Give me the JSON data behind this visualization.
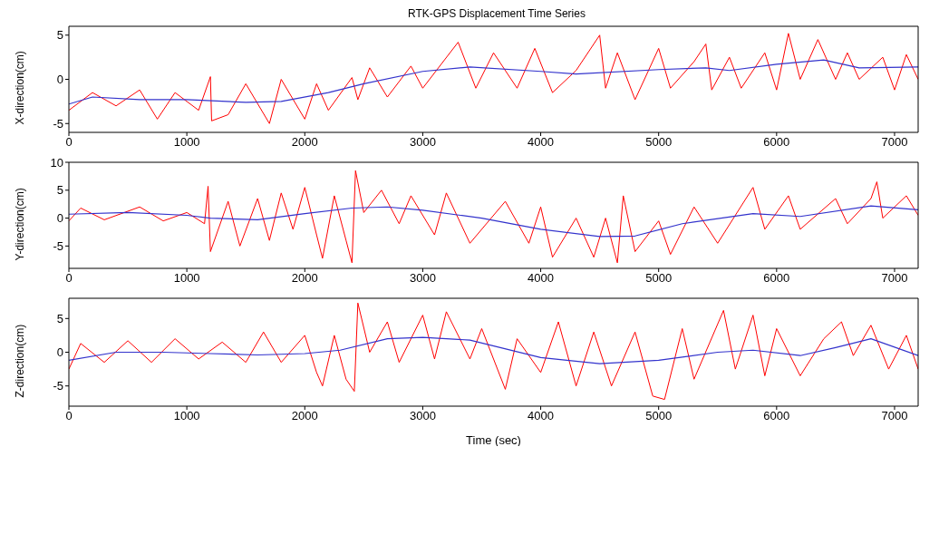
{
  "chart_data": [
    {
      "type": "line",
      "title": "RTK-GPS Displacement Time Series",
      "ylabel": "X-direction(cm)",
      "xlim": [
        0,
        7200
      ],
      "xticks": [
        0,
        1000,
        2000,
        3000,
        4000,
        5000,
        6000,
        7000
      ],
      "ylim": [
        -6,
        6
      ],
      "yticks": [
        -5,
        0,
        5
      ],
      "series": [
        {
          "color": "#ff0000",
          "x": [
            0,
            200,
            400,
            600,
            750,
            900,
            1100,
            1200,
            1210,
            1350,
            1500,
            1700,
            1800,
            2000,
            2100,
            2200,
            2400,
            2450,
            2550,
            2700,
            2900,
            3000,
            3300,
            3450,
            3600,
            3800,
            3950,
            4100,
            4300,
            4500,
            4550,
            4650,
            4800,
            5000,
            5100,
            5300,
            5400,
            5450,
            5600,
            5700,
            5900,
            6000,
            6100,
            6200,
            6350,
            6500,
            6600,
            6700,
            6900,
            7000,
            7100,
            7200
          ],
          "values": [
            -3.5,
            -1.5,
            -3,
            -1.2,
            -4.5,
            -1.5,
            -3.5,
            0.3,
            -4.7,
            -4,
            -0.5,
            -5,
            0,
            -4.5,
            -0.5,
            -3.5,
            0.2,
            -2.3,
            1.3,
            -2,
            1.5,
            -1,
            4.2,
            -1,
            3,
            -1,
            3.5,
            -1.5,
            1,
            5,
            -1,
            3,
            -2.3,
            3.5,
            -1,
            2,
            4,
            -1.2,
            2.5,
            -1,
            3,
            -1.2,
            5.2,
            0,
            4.5,
            0,
            3,
            0,
            2.5,
            -1.2,
            2.8,
            0
          ]
        },
        {
          "color": "#3333cc",
          "x": [
            0,
            200,
            600,
            1000,
            1500,
            1800,
            2200,
            2500,
            3000,
            3400,
            4000,
            4300,
            5000,
            5400,
            5600,
            6000,
            6400,
            6700,
            7200
          ],
          "values": [
            -2.8,
            -2,
            -2.3,
            -2.3,
            -2.6,
            -2.5,
            -1.5,
            -0.5,
            0.9,
            1.4,
            0.9,
            0.6,
            1.1,
            1.3,
            1,
            1.7,
            2.2,
            1.3,
            1.4
          ]
        }
      ]
    },
    {
      "type": "line",
      "ylabel": "Y-direction(cm)",
      "xlim": [
        0,
        7200
      ],
      "xticks": [
        0,
        1000,
        2000,
        3000,
        4000,
        5000,
        6000,
        7000
      ],
      "ylim": [
        -9,
        10
      ],
      "yticks": [
        -5,
        0,
        5,
        10
      ],
      "series": [
        {
          "color": "#ff0000",
          "x": [
            0,
            100,
            300,
            600,
            800,
            1000,
            1150,
            1180,
            1200,
            1350,
            1450,
            1600,
            1700,
            1800,
            1900,
            2000,
            2100,
            2150,
            2250,
            2350,
            2400,
            2430,
            2500,
            2650,
            2800,
            2900,
            3100,
            3200,
            3400,
            3700,
            3900,
            4000,
            4100,
            4300,
            4450,
            4550,
            4650,
            4700,
            4800,
            5000,
            5100,
            5300,
            5500,
            5800,
            5900,
            6100,
            6200,
            6500,
            6600,
            6800,
            6850,
            6900,
            7100,
            7200
          ],
          "values": [
            -0.5,
            1.8,
            -0.3,
            2,
            -0.5,
            1,
            -1,
            5.7,
            -6,
            3,
            -5,
            3.5,
            -4,
            4.5,
            -2,
            5.5,
            -3,
            -7.2,
            4,
            -4,
            -8,
            8.5,
            1,
            5,
            -1,
            4,
            -3,
            4.5,
            -4.5,
            3,
            -4.5,
            2,
            -7,
            0,
            -7,
            0,
            -8,
            4,
            -6,
            -0.5,
            -6.5,
            2,
            -4.5,
            5.5,
            -2,
            4,
            -2,
            3.5,
            -1,
            3.5,
            6.5,
            0,
            4,
            0.5
          ]
        },
        {
          "color": "#3333cc",
          "x": [
            0,
            500,
            1000,
            1200,
            1600,
            2000,
            2400,
            2700,
            3000,
            3500,
            4000,
            4500,
            4800,
            5200,
            5800,
            6200,
            6800,
            7200
          ],
          "values": [
            0.7,
            1,
            0.5,
            0,
            -0.3,
            0.8,
            1.8,
            2,
            1.4,
            0,
            -2,
            -3.3,
            -3.2,
            -1,
            0.8,
            0.3,
            2.2,
            1.5
          ]
        }
      ]
    },
    {
      "type": "line",
      "ylabel": "Z-direction(cm)",
      "xlabel": "Time (sec)",
      "xlim": [
        0,
        7200
      ],
      "xticks": [
        0,
        1000,
        2000,
        3000,
        4000,
        5000,
        6000,
        7000
      ],
      "ylim": [
        -8,
        8
      ],
      "yticks": [
        -5,
        0,
        5
      ],
      "series": [
        {
          "color": "#ff0000",
          "x": [
            0,
            100,
            300,
            500,
            700,
            900,
            1100,
            1300,
            1500,
            1650,
            1800,
            2000,
            2100,
            2150,
            2250,
            2350,
            2420,
            2450,
            2550,
            2700,
            2800,
            3000,
            3100,
            3200,
            3400,
            3500,
            3700,
            3800,
            4000,
            4150,
            4300,
            4450,
            4600,
            4800,
            4950,
            5050,
            5200,
            5300,
            5550,
            5650,
            5800,
            5900,
            6000,
            6200,
            6400,
            6550,
            6650,
            6800,
            6950,
            7100,
            7200
          ],
          "values": [
            -2.5,
            1.3,
            -1.5,
            1.7,
            -1.5,
            2,
            -1,
            1.5,
            -1.5,
            3,
            -1.5,
            2.5,
            -3,
            -5,
            2.5,
            -4,
            -5.8,
            7.3,
            0,
            4.5,
            -1.5,
            5.5,
            -1,
            6,
            -1,
            3.5,
            -5.5,
            2,
            -3,
            4.5,
            -5,
            3,
            -5,
            3,
            -6.5,
            -7,
            3.5,
            -4,
            6.2,
            -2.5,
            5.5,
            -3.5,
            3.5,
            -3.5,
            2,
            4.5,
            -0.5,
            4,
            -2.5,
            2.5,
            -2.5
          ]
        },
        {
          "color": "#3333cc",
          "x": [
            0,
            400,
            800,
            1200,
            1600,
            2000,
            2300,
            2700,
            3000,
            3400,
            4000,
            4500,
            5000,
            5500,
            5800,
            6200,
            6500,
            6800,
            7200
          ],
          "values": [
            -1.2,
            0,
            0,
            -0.2,
            -0.4,
            -0.2,
            0.3,
            2,
            2.2,
            1.8,
            -0.8,
            -1.7,
            -1.2,
            0,
            0.3,
            -0.5,
            0.7,
            2,
            -0.5
          ]
        }
      ]
    }
  ]
}
